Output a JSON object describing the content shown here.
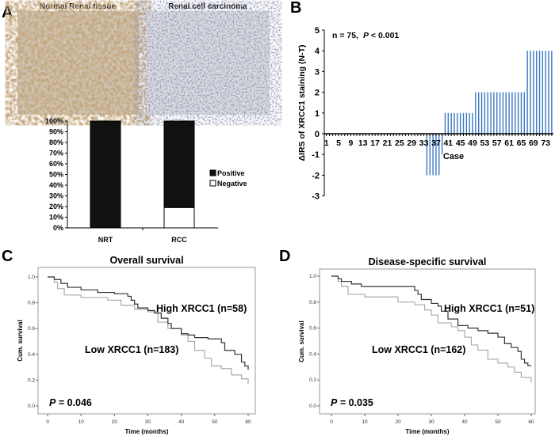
{
  "panel_labels": [
    "A",
    "B",
    "C",
    "D"
  ],
  "panelA": {
    "image_titles": [
      "Normal Renal tissue",
      "Renal cell carcinoma"
    ],
    "colors": {
      "positive": "#111111",
      "negative": "#ffffff"
    }
  },
  "chart_data": [
    {
      "id": "A",
      "type": "bar",
      "stacked": true,
      "categories": [
        "NRT",
        "RCC"
      ],
      "series": [
        {
          "name": "Positive",
          "values": [
            100,
            81
          ]
        },
        {
          "name": "Negative",
          "values": [
            0,
            19
          ]
        }
      ],
      "ylim": [
        0,
        100
      ],
      "yticks": [
        "0%",
        "10%",
        "20%",
        "30%",
        "40%",
        "50%",
        "60%",
        "70%",
        "80%",
        "90%",
        "100%"
      ],
      "legend": "right"
    },
    {
      "id": "B",
      "type": "bar",
      "annotation_n": "n = 75,",
      "annotation_p": "P",
      "annotation_p_rest": " < 0.001",
      "ylabel": "ΔIRS of XRCC1 staining (N-T)",
      "xlabel": "Case",
      "ylim": [
        -3,
        5
      ],
      "yticks": [
        "-3",
        "-2",
        "-1",
        "0",
        "1",
        "2",
        "3",
        "4",
        "5"
      ],
      "xticks": [
        "1",
        "5",
        "9",
        "13",
        "17",
        "21",
        "25",
        "29",
        "33",
        "37",
        "41",
        "45",
        "49",
        "53",
        "57",
        "61",
        "65",
        "69",
        "73"
      ],
      "values": [
        0,
        0,
        0,
        0,
        0,
        0,
        0,
        0,
        0,
        0,
        0,
        0,
        0,
        0,
        0,
        0,
        0,
        0,
        0,
        0,
        0,
        0,
        0,
        0,
        0,
        0,
        0,
        0,
        0,
        0,
        0,
        0,
        0,
        -2,
        -2,
        -2,
        -2,
        -2,
        -1,
        1,
        1,
        1,
        1,
        1,
        1,
        1,
        1,
        1,
        1,
        2,
        2,
        2,
        2,
        2,
        2,
        2,
        2,
        2,
        2,
        2,
        2,
        2,
        2,
        2,
        2,
        2,
        4,
        4,
        4,
        4,
        4,
        4,
        4,
        4,
        4
      ],
      "color": "#3a78c2"
    },
    {
      "id": "C",
      "type": "line",
      "title": "Overall survival",
      "xlabel": "Time (months)",
      "ylabel": "Cum. survival",
      "xlim": [
        0,
        60
      ],
      "ylim": [
        0,
        1
      ],
      "xticks": [
        "0",
        "10",
        "20",
        "30",
        "40",
        "50",
        "60"
      ],
      "yticks": [
        "0.0",
        "0.2",
        "0.4",
        "0.6",
        "0.8",
        "1.0"
      ],
      "p_prefix": "P",
      "p_value": " = 0.046",
      "series": [
        {
          "name": "High XRCC1 (n=58)",
          "color": "#333333",
          "x": [
            0,
            2,
            4,
            6,
            10,
            15,
            20,
            24,
            25,
            26,
            27,
            30,
            32,
            34,
            36,
            37,
            40,
            42,
            44,
            48,
            52,
            53,
            56,
            58,
            59,
            60
          ],
          "y": [
            1,
            0.98,
            0.95,
            0.92,
            0.9,
            0.88,
            0.87,
            0.85,
            0.82,
            0.79,
            0.76,
            0.74,
            0.72,
            0.68,
            0.64,
            0.6,
            0.56,
            0.55,
            0.53,
            0.52,
            0.49,
            0.43,
            0.4,
            0.34,
            0.31,
            0.28
          ]
        },
        {
          "name": "Low XRCC1 (n=183)",
          "color": "#aaaaaa",
          "x": [
            0,
            2,
            3,
            5,
            10,
            18,
            22,
            26,
            30,
            33,
            36,
            40,
            42,
            44,
            47,
            49,
            52,
            55,
            58,
            60
          ],
          "y": [
            1,
            0.96,
            0.91,
            0.86,
            0.84,
            0.82,
            0.78,
            0.75,
            0.73,
            0.65,
            0.6,
            0.55,
            0.5,
            0.43,
            0.37,
            0.31,
            0.29,
            0.24,
            0.21,
            0.17
          ]
        }
      ]
    },
    {
      "id": "D",
      "type": "line",
      "title": "Disease-specific survival",
      "xlabel": "Time (months)",
      "ylabel": "Cum. survival",
      "xlim": [
        0,
        60
      ],
      "ylim": [
        0,
        1
      ],
      "xticks": [
        "0",
        "10",
        "20",
        "30",
        "40",
        "50",
        "60"
      ],
      "yticks": [
        "0.0",
        "0.2",
        "0.4",
        "0.6",
        "0.8",
        "1.0"
      ],
      "p_prefix": "P",
      "p_value": " = 0.035",
      "series": [
        {
          "name": "High XRCC1 (n=51)",
          "color": "#333333",
          "x": [
            0,
            2,
            3,
            6,
            9,
            24,
            25,
            26,
            27,
            30,
            32,
            33,
            35,
            38,
            41,
            44,
            47,
            50,
            52,
            54,
            56,
            57,
            58,
            59,
            60
          ],
          "y": [
            1,
            0.98,
            0.96,
            0.94,
            0.92,
            0.92,
            0.89,
            0.86,
            0.82,
            0.79,
            0.77,
            0.73,
            0.67,
            0.62,
            0.6,
            0.58,
            0.56,
            0.53,
            0.48,
            0.45,
            0.42,
            0.36,
            0.33,
            0.31,
            0.31
          ]
        },
        {
          "name": "Low XRCC1 (n=162)",
          "color": "#aaaaaa",
          "x": [
            0,
            2,
            3,
            5,
            10,
            20,
            25,
            28,
            30,
            32,
            36,
            38,
            40,
            42,
            44,
            47,
            50,
            53,
            55,
            57,
            60
          ],
          "y": [
            1,
            0.96,
            0.92,
            0.86,
            0.84,
            0.8,
            0.78,
            0.74,
            0.7,
            0.64,
            0.61,
            0.58,
            0.53,
            0.47,
            0.43,
            0.36,
            0.33,
            0.3,
            0.26,
            0.22,
            0.18
          ]
        }
      ]
    }
  ]
}
